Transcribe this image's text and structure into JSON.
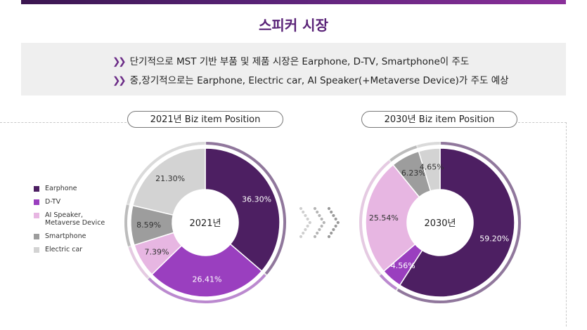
{
  "header": {
    "title": "스피커 시장",
    "bullets": [
      "단기적으로 MST 기반 부품 및 제품 시장은 Earphone, D-TV, Smartphone이 주도",
      "중,장기적으로는 Earphone, Electric car, AI Speaker(+Metaverse Device)가 주도 예상"
    ],
    "bullet_icon": "double-chevron-icon"
  },
  "legend": {
    "items": [
      {
        "label": "Earphone",
        "color": "#4d1f62"
      },
      {
        "label": "D-TV",
        "color": "#9a3fbf"
      },
      {
        "label": "AI Speaker,\nMetaverse Device",
        "color": "#e7b6e2"
      },
      {
        "label": "Smartphone",
        "color": "#9d9d9d"
      },
      {
        "label": "Electric car",
        "color": "#d3d3d3"
      }
    ]
  },
  "chart_data": [
    {
      "type": "pie",
      "title": "2021년 Biz item Position",
      "center_label": "2021년",
      "categories": [
        "Earphone",
        "D-TV",
        "AI Speaker, Metaverse Device",
        "Smartphone",
        "Electric car"
      ],
      "values": [
        36.3,
        26.41,
        7.39,
        8.59,
        21.3
      ],
      "labels": [
        "36.30%",
        "26.41%",
        "7.39%",
        "8.59%",
        "21.30%"
      ],
      "colors": [
        "#4d1f62",
        "#9a3fbf",
        "#e7b6e2",
        "#9d9d9d",
        "#d3d3d3"
      ]
    },
    {
      "type": "pie",
      "title": "2030년 Biz item Position",
      "center_label": "2030년",
      "categories": [
        "Earphone",
        "D-TV",
        "AI Speaker, Metaverse Device",
        "Smartphone",
        "Electric car"
      ],
      "values": [
        59.2,
        4.56,
        25.54,
        6.23,
        4.65
      ],
      "labels": [
        "59.20%",
        "4.56%",
        "25.54%",
        "6.23%",
        "4.65%"
      ],
      "colors": [
        "#4d1f62",
        "#9a3fbf",
        "#e7b6e2",
        "#9d9d9d",
        "#d3d3d3"
      ]
    }
  ]
}
